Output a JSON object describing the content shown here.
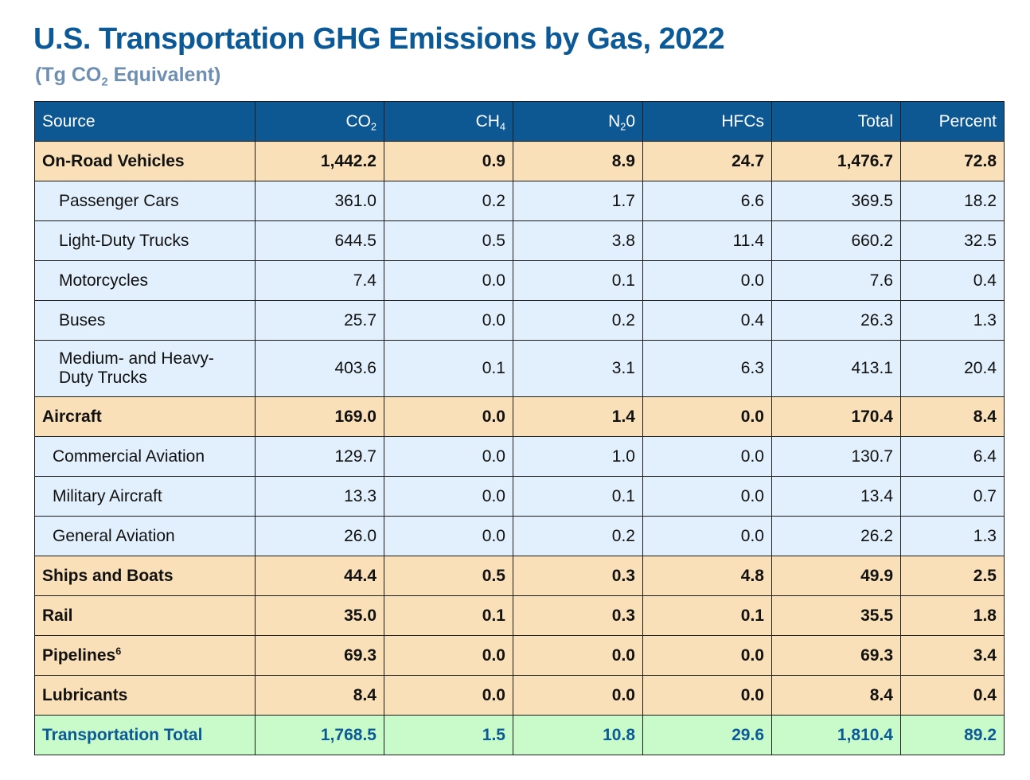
{
  "title": "U.S. Transportation GHG Emissions by Gas, 2022",
  "subtitle": {
    "prefix": "(Tg CO",
    "sub": "2",
    "suffix": " Equivalent)"
  },
  "headers": {
    "source": "Source",
    "co2": {
      "base": "CO",
      "sub": "2"
    },
    "ch4": {
      "base": "CH",
      "sub": "4"
    },
    "n2o": {
      "base": "N",
      "sub": "2",
      "suffix": "0"
    },
    "hfcs": "HFCs",
    "total": "Total",
    "percent": "Percent"
  },
  "chart_data": {
    "type": "table",
    "title": "U.S. Transportation GHG Emissions by Gas, 2022",
    "unit": "Tg CO2 Equivalent",
    "columns": [
      "Source",
      "CO2",
      "CH4",
      "N20",
      "HFCs",
      "Total",
      "Percent"
    ],
    "rows": [
      {
        "source": "On-Road Vehicles",
        "level": "category",
        "values": [
          "1,442.2",
          "0.9",
          "8.9",
          "24.7",
          "1,476.7",
          "72.8"
        ]
      },
      {
        "source": "Passenger Cars",
        "level": "sub2",
        "values": [
          "361.0",
          "0.2",
          "1.7",
          "6.6",
          "369.5",
          "18.2"
        ]
      },
      {
        "source": "Light-Duty Trucks",
        "level": "sub2",
        "values": [
          "644.5",
          "0.5",
          "3.8",
          "11.4",
          "660.2",
          "32.5"
        ]
      },
      {
        "source": "Motorcycles",
        "level": "sub2",
        "values": [
          "7.4",
          "0.0",
          "0.1",
          "0.0",
          "7.6",
          "0.4"
        ]
      },
      {
        "source": "Buses",
        "level": "sub2",
        "values": [
          "25.7",
          "0.0",
          "0.2",
          "0.4",
          "26.3",
          "1.3"
        ]
      },
      {
        "source": "Medium- and Heavy-Duty Trucks",
        "level": "sub2",
        "values": [
          "403.6",
          "0.1",
          "3.1",
          "6.3",
          "413.1",
          "20.4"
        ]
      },
      {
        "source": "Aircraft",
        "level": "category",
        "values": [
          "169.0",
          "0.0",
          "1.4",
          "0.0",
          "170.4",
          "8.4"
        ]
      },
      {
        "source": "Commercial Aviation",
        "level": "sub1",
        "values": [
          "129.7",
          "0.0",
          "1.0",
          "0.0",
          "130.7",
          "6.4"
        ]
      },
      {
        "source": "Military Aircraft",
        "level": "sub1",
        "values": [
          "13.3",
          "0.0",
          "0.1",
          "0.0",
          "13.4",
          "0.7"
        ]
      },
      {
        "source": "General Aviation",
        "level": "sub1",
        "values": [
          "26.0",
          "0.0",
          "0.2",
          "0.0",
          "26.2",
          "1.3"
        ]
      },
      {
        "source": "Ships and Boats",
        "level": "category",
        "values": [
          "44.4",
          "0.5",
          "0.3",
          "4.8",
          "49.9",
          "2.5"
        ]
      },
      {
        "source": "Rail",
        "level": "category",
        "values": [
          "35.0",
          "0.1",
          "0.3",
          "0.1",
          "35.5",
          "1.8"
        ]
      },
      {
        "source": "Pipelines",
        "footnote": "6",
        "level": "category",
        "values": [
          "69.3",
          "0.0",
          "0.0",
          "0.0",
          "69.3",
          "3.4"
        ]
      },
      {
        "source": "Lubricants",
        "level": "category",
        "values": [
          "8.4",
          "0.0",
          "0.0",
          "0.0",
          "8.4",
          "0.4"
        ]
      },
      {
        "source": "Transportation Total",
        "level": "total",
        "values": [
          "1,768.5",
          "1.5",
          "10.8",
          "29.6",
          "1,810.4",
          "89.2"
        ]
      }
    ]
  }
}
